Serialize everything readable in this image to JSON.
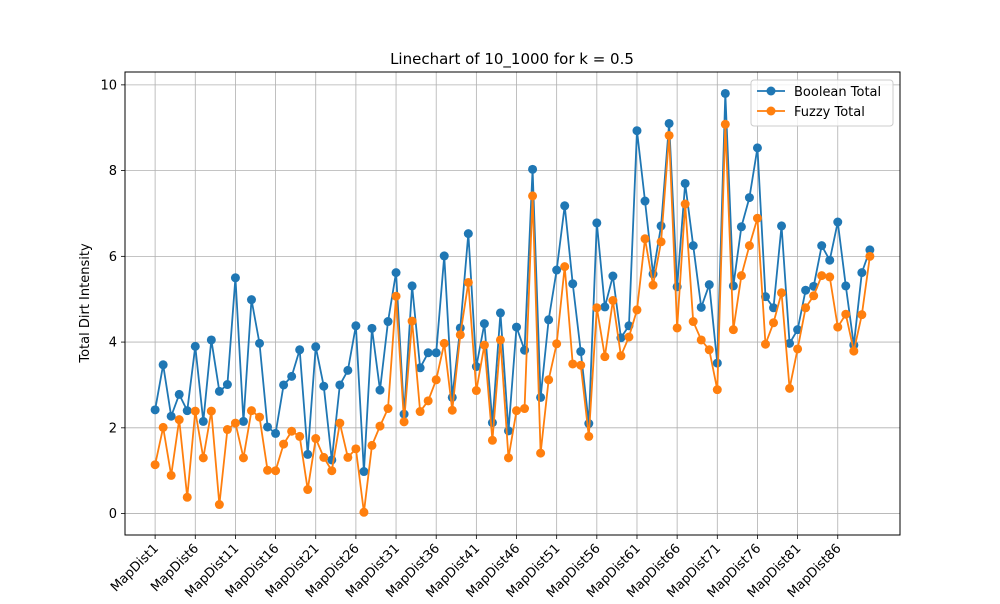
{
  "chart_data": {
    "type": "line",
    "title": "Linechart of 10_1000 for k = 0.5",
    "xlabel": "",
    "ylabel": "Total Dirt Intensity",
    "ylim": [
      -0.5,
      10.3
    ],
    "yticks": [
      0,
      2,
      4,
      6,
      8,
      10
    ],
    "grid": true,
    "legend_position": "top-right",
    "x": [
      "MapDist1",
      "MapDist2",
      "MapDist3",
      "MapDist4",
      "MapDist5",
      "MapDist6",
      "MapDist7",
      "MapDist8",
      "MapDist9",
      "MapDist10",
      "MapDist11",
      "MapDist12",
      "MapDist13",
      "MapDist14",
      "MapDist15",
      "MapDist16",
      "MapDist17",
      "MapDist18",
      "MapDist19",
      "MapDist20",
      "MapDist21",
      "MapDist22",
      "MapDist23",
      "MapDist24",
      "MapDist25",
      "MapDist26",
      "MapDist27",
      "MapDist28",
      "MapDist29",
      "MapDist30",
      "MapDist31",
      "MapDist32",
      "MapDist33",
      "MapDist34",
      "MapDist35",
      "MapDist36",
      "MapDist37",
      "MapDist38",
      "MapDist39",
      "MapDist40",
      "MapDist41",
      "MapDist42",
      "MapDist43",
      "MapDist44",
      "MapDist45",
      "MapDist46",
      "MapDist47",
      "MapDist48",
      "MapDist49",
      "MapDist50",
      "MapDist51",
      "MapDist52",
      "MapDist53",
      "MapDist54",
      "MapDist55",
      "MapDist56",
      "MapDist57",
      "MapDist58",
      "MapDist59",
      "MapDist60",
      "MapDist61",
      "MapDist62",
      "MapDist63",
      "MapDist64",
      "MapDist65",
      "MapDist66",
      "MapDist67",
      "MapDist68",
      "MapDist69",
      "MapDist70",
      "MapDist71",
      "MapDist72",
      "MapDist73",
      "MapDist74",
      "MapDist75",
      "MapDist76",
      "MapDist77",
      "MapDist78",
      "MapDist79",
      "MapDist80",
      "MapDist81",
      "MapDist82",
      "MapDist83",
      "MapDist84",
      "MapDist85",
      "MapDist86",
      "MapDist87",
      "MapDist88",
      "MapDist89",
      "MapDist90"
    ],
    "xtick_labels": [
      "MapDist1",
      "MapDist6",
      "MapDist11",
      "MapDist16",
      "MapDist21",
      "MapDist26",
      "MapDist31",
      "MapDist36",
      "MapDist41",
      "MapDist46",
      "MapDist51",
      "MapDist56",
      "MapDist61",
      "MapDist66",
      "MapDist71",
      "MapDist76",
      "MapDist81",
      "MapDist86"
    ],
    "series": [
      {
        "name": "Boolean Total",
        "color": "#1f77b4",
        "values": [
          2.42,
          3.47,
          2.27,
          2.78,
          2.4,
          3.9,
          2.15,
          4.05,
          2.85,
          3.01,
          5.5,
          2.15,
          4.99,
          3.97,
          2.02,
          1.87,
          3.0,
          3.2,
          3.82,
          1.38,
          3.89,
          2.97,
          1.25,
          3.0,
          3.34,
          4.38,
          0.98,
          4.32,
          2.88,
          4.48,
          5.62,
          2.32,
          5.31,
          3.4,
          3.75,
          3.75,
          6.01,
          2.71,
          4.33,
          6.53,
          3.43,
          4.43,
          2.12,
          4.68,
          1.93,
          4.35,
          3.81,
          8.03,
          2.71,
          4.52,
          5.68,
          7.18,
          5.36,
          3.78,
          2.1,
          6.78,
          4.82,
          5.54,
          4.1,
          4.38,
          8.93,
          7.29,
          5.59,
          6.71,
          9.1,
          5.29,
          7.7,
          6.25,
          4.81,
          5.34,
          3.51,
          9.8,
          5.31,
          6.69,
          7.37,
          8.53,
          5.06,
          4.8,
          6.71,
          3.97,
          4.29,
          5.21,
          5.3,
          6.25,
          5.91,
          6.8,
          5.31,
          3.93,
          5.62,
          6.15
        ]
      },
      {
        "name": "Fuzzy Total",
        "color": "#ff7f0e",
        "values": [
          1.14,
          2.01,
          0.89,
          2.19,
          0.38,
          2.39,
          1.3,
          2.39,
          0.21,
          1.96,
          2.11,
          1.3,
          2.4,
          2.25,
          1.01,
          1.0,
          1.62,
          1.92,
          1.8,
          0.56,
          1.75,
          1.31,
          1.0,
          2.11,
          1.31,
          1.51,
          0.03,
          1.59,
          2.04,
          2.45,
          5.07,
          2.14,
          4.49,
          2.38,
          2.63,
          3.12,
          3.97,
          2.41,
          4.17,
          5.39,
          2.87,
          3.93,
          1.71,
          4.05,
          1.3,
          2.4,
          2.45,
          7.41,
          1.41,
          3.12,
          3.96,
          5.76,
          3.49,
          3.46,
          1.8,
          4.8,
          3.66,
          4.97,
          3.68,
          4.12,
          4.75,
          6.41,
          5.33,
          6.34,
          8.82,
          4.33,
          7.22,
          4.48,
          4.05,
          3.82,
          2.89,
          9.08,
          4.29,
          5.55,
          6.25,
          6.89,
          3.95,
          4.45,
          5.15,
          2.92,
          3.84,
          4.8,
          5.08,
          5.55,
          5.52,
          4.35,
          4.65,
          3.79,
          4.64,
          6.0
        ]
      }
    ]
  }
}
